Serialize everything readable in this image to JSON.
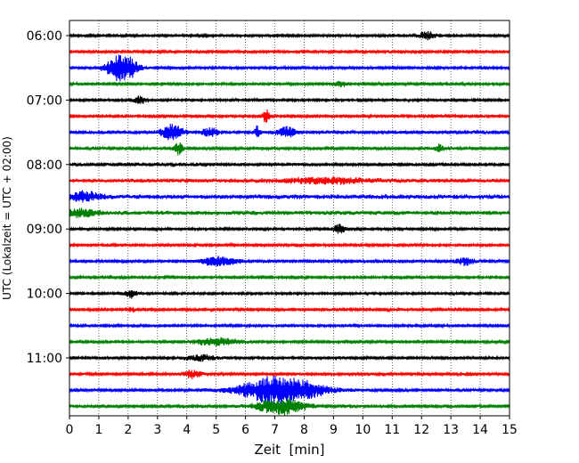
{
  "chart_data": {
    "type": "line",
    "title": "",
    "xlabel": "Zeit  [min]",
    "ylabel": "UTC (Lokalzeit = UTC + 02:00)",
    "xlim": [
      0,
      15
    ],
    "x_ticks": [
      0,
      1,
      2,
      3,
      4,
      5,
      6,
      7,
      8,
      9,
      10,
      11,
      12,
      13,
      14,
      15
    ],
    "x_tick_labels": [
      "0",
      "1",
      "2",
      "3",
      "4",
      "5",
      "6",
      "7",
      "8",
      "9",
      "10",
      "11",
      "12",
      "13",
      "14",
      "15"
    ],
    "y_tick_labels": [
      "06:00",
      "07:00",
      "08:00",
      "09:00",
      "10:00",
      "11:00"
    ],
    "grid": "vertical dotted",
    "trace_colors": [
      "#000000",
      "#ff0000",
      "#0000ff",
      "#008000"
    ],
    "series": [
      {
        "start_utc": "06:00",
        "color": "#000000",
        "noise": 1.2,
        "events": [
          {
            "min": 12.2,
            "amp": 4,
            "width": 0.3
          }
        ]
      },
      {
        "start_utc": "06:15",
        "color": "#ff0000",
        "noise": 1.4,
        "events": []
      },
      {
        "start_utc": "06:30",
        "color": "#0000ff",
        "noise": 1.3,
        "events": [
          {
            "min": 1.8,
            "amp": 16,
            "width": 0.5
          }
        ]
      },
      {
        "start_utc": "06:45",
        "color": "#008000",
        "noise": 1.2,
        "events": [
          {
            "min": 9.2,
            "amp": 3,
            "width": 0.3
          }
        ]
      },
      {
        "start_utc": "07:00",
        "color": "#000000",
        "noise": 1.1,
        "events": [
          {
            "min": 2.4,
            "amp": 4,
            "width": 0.2
          }
        ]
      },
      {
        "start_utc": "07:15",
        "color": "#ff0000",
        "noise": 1.3,
        "events": [
          {
            "min": 6.7,
            "amp": 9,
            "width": 0.1
          }
        ]
      },
      {
        "start_utc": "07:30",
        "color": "#0000ff",
        "noise": 1.6,
        "events": [
          {
            "min": 3.5,
            "amp": 9,
            "width": 0.35
          },
          {
            "min": 4.8,
            "amp": 4,
            "width": 0.3
          },
          {
            "min": 6.4,
            "amp": 7,
            "width": 0.08
          },
          {
            "min": 7.4,
            "amp": 6,
            "width": 0.3
          }
        ]
      },
      {
        "start_utc": "07:45",
        "color": "#008000",
        "noise": 1.4,
        "events": [
          {
            "min": 3.7,
            "amp": 7,
            "width": 0.15
          },
          {
            "min": 12.6,
            "amp": 4,
            "width": 0.15
          }
        ]
      },
      {
        "start_utc": "08:00",
        "color": "#000000",
        "noise": 1.6,
        "events": []
      },
      {
        "start_utc": "08:15",
        "color": "#ff0000",
        "noise": 1.8,
        "events": [
          {
            "min": 8.7,
            "amp": 3,
            "width": 1.5
          }
        ]
      },
      {
        "start_utc": "08:30",
        "color": "#0000ff",
        "noise": 2.3,
        "events": [
          {
            "min": 0.5,
            "amp": 5,
            "width": 0.5
          }
        ]
      },
      {
        "start_utc": "08:45",
        "color": "#008000",
        "noise": 2.0,
        "events": [
          {
            "min": 0.4,
            "amp": 4,
            "width": 0.6
          }
        ]
      },
      {
        "start_utc": "09:00",
        "color": "#000000",
        "noise": 1.2,
        "events": [
          {
            "min": 9.2,
            "amp": 6,
            "width": 0.2
          }
        ]
      },
      {
        "start_utc": "09:15",
        "color": "#ff0000",
        "noise": 1.3,
        "events": []
      },
      {
        "start_utc": "09:30",
        "color": "#0000ff",
        "noise": 1.4,
        "events": [
          {
            "min": 5.1,
            "amp": 5,
            "width": 0.6
          },
          {
            "min": 13.5,
            "amp": 4,
            "width": 0.3
          }
        ]
      },
      {
        "start_utc": "09:45",
        "color": "#008000",
        "noise": 1.2,
        "events": []
      },
      {
        "start_utc": "10:00",
        "color": "#000000",
        "noise": 1.1,
        "events": [
          {
            "min": 2.1,
            "amp": 5,
            "width": 0.2
          }
        ]
      },
      {
        "start_utc": "10:15",
        "color": "#ff0000",
        "noise": 1.3,
        "events": [
          {
            "min": 2.1,
            "amp": 4,
            "width": 0.1
          }
        ]
      },
      {
        "start_utc": "10:30",
        "color": "#0000ff",
        "noise": 1.2,
        "events": []
      },
      {
        "start_utc": "10:45",
        "color": "#008000",
        "noise": 1.3,
        "events": [
          {
            "min": 5.0,
            "amp": 4,
            "width": 0.8
          }
        ]
      },
      {
        "start_utc": "11:00",
        "color": "#000000",
        "noise": 1.4,
        "events": [
          {
            "min": 4.5,
            "amp": 3,
            "width": 0.5
          }
        ]
      },
      {
        "start_utc": "11:15",
        "color": "#ff0000",
        "noise": 1.4,
        "events": [
          {
            "min": 4.2,
            "amp": 4,
            "width": 0.3
          }
        ]
      },
      {
        "start_utc": "11:30",
        "color": "#0000ff",
        "noise": 1.4,
        "events": [
          {
            "min": 7.2,
            "amp": 16,
            "width": 1.3
          }
        ]
      },
      {
        "start_utc": "11:45",
        "color": "#008000",
        "noise": 1.5,
        "events": [
          {
            "min": 7.2,
            "amp": 9,
            "width": 0.8
          }
        ]
      }
    ]
  }
}
